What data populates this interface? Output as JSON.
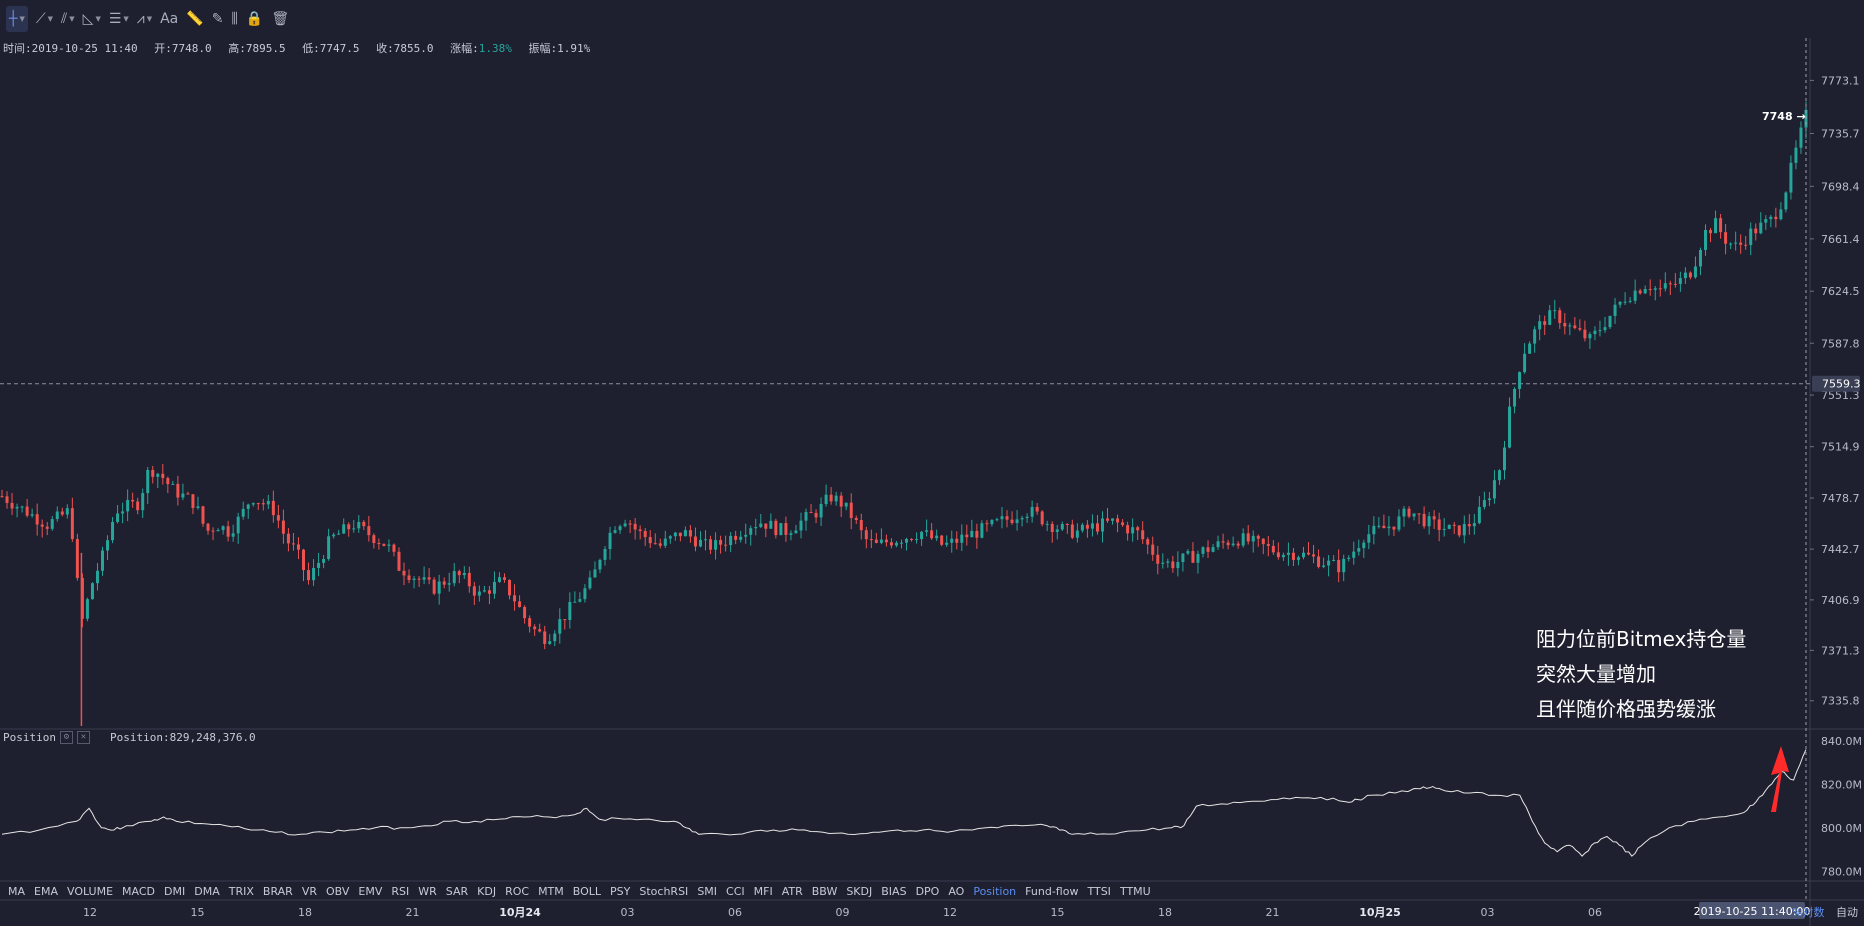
{
  "toolbar": {
    "tools": [
      {
        "name": "crosshair",
        "icon": "crosshair-icon",
        "glyph": "┼",
        "caret": true,
        "active": true
      },
      {
        "name": "trend-line",
        "icon": "trend-line-icon",
        "glyph": "⟋",
        "caret": true
      },
      {
        "name": "parallel-channel",
        "icon": "channel-icon",
        "glyph": "⫽",
        "caret": true
      },
      {
        "name": "fib",
        "icon": "fib-icon",
        "glyph": "◺",
        "caret": true
      },
      {
        "name": "horizontal-lines",
        "icon": "lines-icon",
        "glyph": "☰",
        "caret": true
      },
      {
        "name": "pattern",
        "icon": "pattern-icon",
        "glyph": "⩘",
        "caret": true
      },
      {
        "name": "text",
        "icon": "text-icon",
        "glyph": "Aa",
        "caret": false
      },
      {
        "name": "measure",
        "icon": "ruler-icon",
        "glyph": "📏",
        "caret": false
      },
      {
        "name": "brush",
        "icon": "brush-icon",
        "glyph": "✎",
        "caret": false
      },
      {
        "name": "bars",
        "icon": "candles-icon",
        "glyph": "⫼",
        "caret": false
      },
      {
        "name": "lock",
        "icon": "lock-icon",
        "glyph": "🔒",
        "caret": false
      },
      {
        "name": "delete",
        "icon": "trash-icon",
        "glyph": "🗑",
        "caret": false
      }
    ]
  },
  "ohlc": {
    "time_label": "时间:2019-10-25 11:40",
    "open_label": "开:7748.0",
    "high_label": "高:7895.5",
    "low_label": "低:7747.5",
    "close_label": "收:7855.0",
    "change_prefix": "涨幅:",
    "change_value": "1.38%",
    "amplitude_label": "振幅:1.91%"
  },
  "indicator": {
    "name": "Position",
    "value_label": "Position:829,248,376.0"
  },
  "indicator_bar": [
    "MA",
    "EMA",
    "VOLUME",
    "MACD",
    "DMI",
    "DMA",
    "TRIX",
    "BRAR",
    "VR",
    "OBV",
    "EMV",
    "RSI",
    "WR",
    "SAR",
    "KDJ",
    "ROC",
    "MTM",
    "BOLL",
    "PSY",
    "StochRSI",
    "SMI",
    "CCI",
    "MFI",
    "ATR",
    "BBW",
    "SKDJ",
    "BIAS",
    "DPO",
    "AO",
    "Position",
    "Fund-flow",
    "TTSI",
    "TTMU"
  ],
  "indicator_bar_selected": "Position",
  "annotation": [
    "阻力位前Bitmex持仓量",
    "突然大量增加",
    "且伴随价格强势缓涨"
  ],
  "scale_buttons": {
    "pct": "%",
    "log": "对数",
    "auto": "自动"
  },
  "colors": {
    "bg": "#1e1f2f",
    "up": "#26a69a",
    "down": "#ef5350",
    "line": "#e6e6e6",
    "arrow": "#ff2a2a"
  },
  "chart_data": [
    {
      "type": "candlestick",
      "title": "",
      "ylabel": "",
      "ylim": [
        7318,
        7791
      ],
      "y_ticks": [
        7773.1,
        7735.7,
        7698.4,
        7661.4,
        7624.5,
        7587.8,
        7551.3,
        7514.9,
        7478.7,
        7442.7,
        7406.9,
        7371.3,
        7335.8
      ],
      "x_tick_labels": [
        "12",
        "15",
        "18",
        "21",
        "10月24",
        "03",
        "06",
        "09",
        "12",
        "15",
        "18",
        "21",
        "10月25",
        "03",
        "06"
      ],
      "crosshair_time_label": "2019-10-25 11:40:00",
      "horizontal_line_price": 7559.3,
      "last_price_label": "7748",
      "price_path": [
        [
          0,
          7480
        ],
        [
          2,
          7470
        ],
        [
          4,
          7460
        ],
        [
          6,
          7470
        ],
        [
          7,
          7390
        ],
        [
          8,
          7420
        ],
        [
          9,
          7440
        ],
        [
          10,
          7470
        ],
        [
          12,
          7475
        ],
        [
          13,
          7500
        ],
        [
          14,
          7495
        ],
        [
          15,
          7485
        ],
        [
          16,
          7480
        ],
        [
          17,
          7475
        ],
        [
          18,
          7455
        ],
        [
          19,
          7460
        ],
        [
          20,
          7455
        ],
        [
          21,
          7465
        ],
        [
          22,
          7480
        ],
        [
          23,
          7475
        ],
        [
          24,
          7470
        ],
        [
          25,
          7450
        ],
        [
          26,
          7440
        ],
        [
          27,
          7420
        ],
        [
          28,
          7435
        ],
        [
          29,
          7450
        ],
        [
          30,
          7455
        ],
        [
          31,
          7460
        ],
        [
          32,
          7455
        ],
        [
          33,
          7450
        ],
        [
          34,
          7445
        ],
        [
          35,
          7430
        ],
        [
          36,
          7425
        ],
        [
          37,
          7420
        ],
        [
          38,
          7415
        ],
        [
          39,
          7420
        ],
        [
          40,
          7425
        ],
        [
          41,
          7420
        ],
        [
          42,
          7410
        ],
        [
          43,
          7415
        ],
        [
          44,
          7420
        ],
        [
          45,
          7410
        ],
        [
          46,
          7395
        ],
        [
          47,
          7385
        ],
        [
          48,
          7380
        ],
        [
          49,
          7390
        ],
        [
          50,
          7400
        ],
        [
          51,
          7410
        ],
        [
          52,
          7420
        ],
        [
          53,
          7445
        ],
        [
          54,
          7460
        ],
        [
          55,
          7465
        ],
        [
          56,
          7455
        ],
        [
          57,
          7450
        ],
        [
          58,
          7445
        ],
        [
          59,
          7450
        ],
        [
          60,
          7455
        ],
        [
          61,
          7450
        ],
        [
          62,
          7445
        ],
        [
          63,
          7445
        ],
        [
          64,
          7450
        ],
        [
          65,
          7455
        ],
        [
          66,
          7460
        ],
        [
          67,
          7462
        ],
        [
          68,
          7458
        ],
        [
          69,
          7455
        ],
        [
          70,
          7460
        ],
        [
          71,
          7465
        ],
        [
          72,
          7470
        ],
        [
          73,
          7480
        ],
        [
          74,
          7475
        ],
        [
          75,
          7465
        ],
        [
          76,
          7450
        ],
        [
          77,
          7445
        ],
        [
          78,
          7448
        ],
        [
          79,
          7450
        ],
        [
          80,
          7452
        ],
        [
          81,
          7455
        ],
        [
          82,
          7450
        ],
        [
          83,
          7445
        ],
        [
          84,
          7448
        ],
        [
          85,
          7452
        ],
        [
          86,
          7455
        ],
        [
          87,
          7458
        ],
        [
          88,
          7462
        ],
        [
          89,
          7465
        ],
        [
          90,
          7470
        ],
        [
          91,
          7468
        ],
        [
          92,
          7462
        ],
        [
          93,
          7458
        ],
        [
          94,
          7455
        ],
        [
          95,
          7455
        ],
        [
          96,
          7458
        ],
        [
          97,
          7460
        ],
        [
          98,
          7462
        ],
        [
          99,
          7458
        ],
        [
          100,
          7455
        ],
        [
          101,
          7445
        ],
        [
          102,
          7435
        ],
        [
          103,
          7432
        ],
        [
          104,
          7435
        ],
        [
          105,
          7438
        ],
        [
          106,
          7442
        ],
        [
          107,
          7445
        ],
        [
          108,
          7448
        ],
        [
          109,
          7450
        ],
        [
          110,
          7448
        ],
        [
          111,
          7445
        ],
        [
          112,
          7442
        ],
        [
          113,
          7440
        ],
        [
          114,
          7440
        ],
        [
          115,
          7438
        ],
        [
          116,
          7435
        ],
        [
          117,
          7432
        ],
        [
          118,
          7430
        ],
        [
          119,
          7440
        ],
        [
          120,
          7452
        ],
        [
          121,
          7455
        ],
        [
          122,
          7458
        ],
        [
          123,
          7462
        ],
        [
          124,
          7470
        ],
        [
          125,
          7465
        ],
        [
          126,
          7460
        ],
        [
          127,
          7458
        ],
        [
          128,
          7455
        ],
        [
          129,
          7458
        ],
        [
          130,
          7465
        ],
        [
          131,
          7480
        ],
        [
          132,
          7500
        ],
        [
          133,
          7545
        ],
        [
          134,
          7580
        ],
        [
          135,
          7595
        ],
        [
          136,
          7605
        ],
        [
          137,
          7608
        ],
        [
          138,
          7600
        ],
        [
          139,
          7595
        ],
        [
          140,
          7590
        ],
        [
          141,
          7600
        ],
        [
          142,
          7610
        ],
        [
          143,
          7620
        ],
        [
          144,
          7625
        ],
        [
          145,
          7630
        ],
        [
          146,
          7625
        ],
        [
          147,
          7628
        ],
        [
          148,
          7632
        ],
        [
          149,
          7640
        ],
        [
          150,
          7665
        ],
        [
          151,
          7672
        ],
        [
          152,
          7660
        ],
        [
          153,
          7655
        ],
        [
          154,
          7665
        ],
        [
          155,
          7670
        ],
        [
          156,
          7675
        ],
        [
          157,
          7690
        ],
        [
          158,
          7720
        ],
        [
          159,
          7748
        ]
      ]
    },
    {
      "type": "line",
      "title": "Position",
      "ylim": [
        776,
        845
      ],
      "y_ticks": [
        "840.0M",
        "820.0M",
        "800.0M",
        "780.0M"
      ],
      "series": [
        {
          "name": "Position",
          "values": [
            [
              0,
              797
            ],
            [
              3,
              799
            ],
            [
              6,
              803
            ],
            [
              7,
              809
            ],
            [
              8,
              800
            ],
            [
              9,
              799
            ],
            [
              10,
              801
            ],
            [
              12,
              803
            ],
            [
              13,
              805
            ],
            [
              14,
              803
            ],
            [
              16,
              802
            ],
            [
              18,
              801
            ],
            [
              20,
              799
            ],
            [
              22,
              798
            ],
            [
              24,
              797
            ],
            [
              26,
              798
            ],
            [
              28,
              799
            ],
            [
              30,
              800
            ],
            [
              32,
              800
            ],
            [
              34,
              801
            ],
            [
              36,
              803
            ],
            [
              38,
              803
            ],
            [
              40,
              804
            ],
            [
              42,
              805
            ],
            [
              44,
              805
            ],
            [
              46,
              806
            ],
            [
              47,
              809
            ],
            [
              48,
              804
            ],
            [
              50,
              804
            ],
            [
              52,
              804
            ],
            [
              54,
              803
            ],
            [
              55,
              800
            ],
            [
              56,
              797
            ],
            [
              58,
              797
            ],
            [
              60,
              798
            ],
            [
              62,
              799
            ],
            [
              64,
              799
            ],
            [
              66,
              798
            ],
            [
              68,
              797
            ],
            [
              70,
              798
            ],
            [
              72,
              799
            ],
            [
              74,
              799
            ],
            [
              76,
              798
            ],
            [
              78,
              799
            ],
            [
              80,
              800
            ],
            [
              82,
              801
            ],
            [
              84,
              801
            ],
            [
              85,
              799
            ],
            [
              86,
              797
            ],
            [
              88,
              797
            ],
            [
              90,
              798
            ],
            [
              92,
              799
            ],
            [
              94,
              800
            ],
            [
              95,
              801
            ],
            [
              96,
              810
            ],
            [
              98,
              811
            ],
            [
              100,
              812
            ],
            [
              102,
              813
            ],
            [
              104,
              814
            ],
            [
              106,
              814
            ],
            [
              108,
              812
            ],
            [
              109,
              813
            ],
            [
              110,
              815
            ],
            [
              112,
              816
            ],
            [
              114,
              818
            ],
            [
              115,
              819
            ],
            [
              116,
              817
            ],
            [
              118,
              816
            ],
            [
              120,
              815
            ],
            [
              122,
              815
            ],
            [
              123,
              803
            ],
            [
              124,
              793
            ],
            [
              125,
              789
            ],
            [
              126,
              792
            ],
            [
              127,
              787
            ],
            [
              128,
              793
            ],
            [
              129,
              796
            ],
            [
              130,
              792
            ],
            [
              131,
              787
            ],
            [
              132,
              793
            ],
            [
              134,
              800
            ],
            [
              136,
              803
            ],
            [
              138,
              805
            ],
            [
              140,
              807
            ],
            [
              141,
              812
            ],
            [
              142,
              819
            ],
            [
              143,
              826
            ],
            [
              144,
              822
            ],
            [
              145,
              836
            ]
          ]
        }
      ],
      "annotation_arrow": "red-up-arrow"
    }
  ]
}
